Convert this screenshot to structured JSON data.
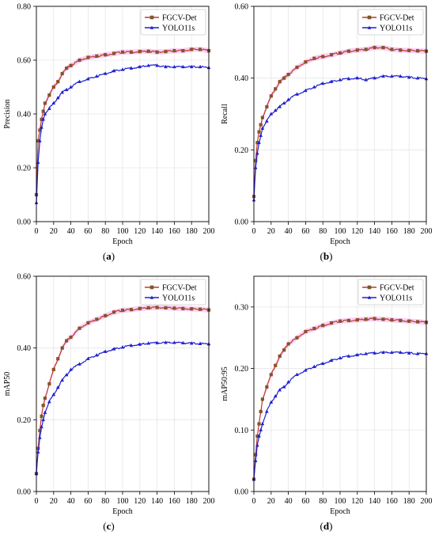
{
  "colors": {
    "fgcv": "#c0392b",
    "fgcv_marker": "#556b2f",
    "yolo": "#1f1fd0",
    "band": "#f3a9f0"
  },
  "chart_data": [
    {
      "id": "a",
      "type": "line",
      "label_letter": "a",
      "xlabel": "Epoch",
      "ylabel": "Precision",
      "xlim": [
        0,
        200
      ],
      "ylim": [
        0,
        0.8
      ],
      "xticks": [
        "0",
        "20",
        "40",
        "60",
        "80",
        "100",
        "120",
        "140",
        "160",
        "180",
        "200"
      ],
      "yticks": [
        "0.00",
        "0.20",
        "0.40",
        "0.60",
        "0.80"
      ],
      "grid": true,
      "legend": "top-right",
      "series": [
        {
          "name": "FGCV-Det",
          "color": "#c0392b",
          "marker": "square",
          "x": [
            0,
            2,
            4,
            6,
            8,
            10,
            15,
            20,
            25,
            30,
            35,
            40,
            50,
            60,
            70,
            80,
            90,
            100,
            110,
            120,
            130,
            140,
            150,
            160,
            170,
            180,
            190,
            200
          ],
          "y": [
            0.1,
            0.3,
            0.34,
            0.38,
            0.41,
            0.44,
            0.47,
            0.5,
            0.52,
            0.55,
            0.57,
            0.58,
            0.6,
            0.61,
            0.615,
            0.62,
            0.625,
            0.63,
            0.63,
            0.632,
            0.633,
            0.63,
            0.632,
            0.635,
            0.635,
            0.64,
            0.64,
            0.635
          ]
        },
        {
          "name": "YOLO11s",
          "color": "#1f1fd0",
          "marker": "triangle",
          "x": [
            0,
            2,
            4,
            6,
            8,
            10,
            15,
            20,
            25,
            30,
            35,
            40,
            50,
            60,
            70,
            80,
            90,
            100,
            110,
            120,
            130,
            140,
            150,
            160,
            170,
            180,
            190,
            200
          ],
          "y": [
            0.07,
            0.22,
            0.3,
            0.35,
            0.38,
            0.4,
            0.42,
            0.44,
            0.46,
            0.48,
            0.49,
            0.5,
            0.52,
            0.53,
            0.54,
            0.55,
            0.56,
            0.565,
            0.57,
            0.575,
            0.58,
            0.58,
            0.575,
            0.575,
            0.575,
            0.575,
            0.575,
            0.572
          ]
        }
      ]
    },
    {
      "id": "b",
      "type": "line",
      "label_letter": "b",
      "xlabel": "Epoch",
      "ylabel": "Recall",
      "xlim": [
        0,
        200
      ],
      "ylim": [
        0,
        0.6
      ],
      "xticks": [
        "0",
        "20",
        "40",
        "60",
        "80",
        "100",
        "120",
        "140",
        "160",
        "180",
        "200"
      ],
      "yticks": [
        "0.00",
        "0.20",
        "0.40",
        "0.60"
      ],
      "grid": true,
      "legend": "top-right",
      "series": [
        {
          "name": "FGCV-Det",
          "color": "#c0392b",
          "marker": "square",
          "x": [
            0,
            2,
            4,
            6,
            8,
            10,
            15,
            20,
            25,
            30,
            35,
            40,
            50,
            60,
            70,
            80,
            90,
            100,
            110,
            120,
            130,
            140,
            150,
            160,
            170,
            180,
            190,
            200
          ],
          "y": [
            0.07,
            0.17,
            0.22,
            0.25,
            0.27,
            0.29,
            0.32,
            0.35,
            0.37,
            0.39,
            0.4,
            0.41,
            0.43,
            0.445,
            0.455,
            0.46,
            0.465,
            0.47,
            0.475,
            0.478,
            0.48,
            0.485,
            0.485,
            0.48,
            0.478,
            0.477,
            0.476,
            0.475
          ]
        },
        {
          "name": "YOLO11s",
          "color": "#1f1fd0",
          "marker": "triangle",
          "x": [
            0,
            2,
            4,
            6,
            8,
            10,
            15,
            20,
            25,
            30,
            35,
            40,
            50,
            60,
            70,
            80,
            90,
            100,
            110,
            120,
            130,
            140,
            150,
            160,
            170,
            180,
            190,
            200
          ],
          "y": [
            0.06,
            0.15,
            0.19,
            0.22,
            0.24,
            0.26,
            0.28,
            0.3,
            0.31,
            0.32,
            0.33,
            0.34,
            0.355,
            0.365,
            0.375,
            0.385,
            0.39,
            0.395,
            0.398,
            0.4,
            0.395,
            0.4,
            0.405,
            0.405,
            0.405,
            0.402,
            0.4,
            0.398
          ]
        }
      ]
    },
    {
      "id": "c",
      "type": "line",
      "label_letter": "c",
      "xlabel": "Epoch",
      "ylabel": "mAP50",
      "xlim": [
        0,
        200
      ],
      "ylim": [
        0,
        0.6
      ],
      "xticks": [
        "0",
        "20",
        "40",
        "60",
        "80",
        "100",
        "120",
        "140",
        "160",
        "180",
        "200"
      ],
      "yticks": [
        "0.00",
        "0.20",
        "0.40",
        "0.60"
      ],
      "grid": true,
      "legend": "top-right",
      "series": [
        {
          "name": "FGCV-Det",
          "color": "#c0392b",
          "marker": "square",
          "x": [
            0,
            2,
            4,
            6,
            8,
            10,
            15,
            20,
            25,
            30,
            35,
            40,
            50,
            60,
            70,
            80,
            90,
            100,
            110,
            120,
            130,
            140,
            150,
            160,
            170,
            180,
            190,
            200
          ],
          "y": [
            0.05,
            0.12,
            0.17,
            0.21,
            0.24,
            0.26,
            0.3,
            0.34,
            0.37,
            0.4,
            0.42,
            0.43,
            0.455,
            0.47,
            0.48,
            0.49,
            0.5,
            0.505,
            0.507,
            0.51,
            0.512,
            0.513,
            0.512,
            0.511,
            0.51,
            0.509,
            0.508,
            0.506
          ]
        },
        {
          "name": "YOLO11s",
          "color": "#1f1fd0",
          "marker": "triangle",
          "x": [
            0,
            2,
            4,
            6,
            8,
            10,
            15,
            20,
            25,
            30,
            35,
            40,
            50,
            60,
            70,
            80,
            90,
            100,
            110,
            120,
            130,
            140,
            150,
            160,
            170,
            180,
            190,
            200
          ],
          "y": [
            0.05,
            0.11,
            0.15,
            0.18,
            0.2,
            0.22,
            0.25,
            0.27,
            0.29,
            0.31,
            0.325,
            0.34,
            0.355,
            0.37,
            0.38,
            0.39,
            0.397,
            0.402,
            0.407,
            0.41,
            0.413,
            0.414,
            0.415,
            0.415,
            0.414,
            0.413,
            0.412,
            0.411
          ]
        }
      ]
    },
    {
      "id": "d",
      "type": "line",
      "label_letter": "d",
      "xlabel": "Epoch",
      "ylabel": "mAP50:95",
      "xlim": [
        0,
        200
      ],
      "ylim": [
        0,
        0.35
      ],
      "xticks": [
        "0",
        "20",
        "40",
        "60",
        "80",
        "100",
        "120",
        "140",
        "160",
        "180",
        "200"
      ],
      "yticks": [
        "0.00",
        "0.10",
        "0.20",
        "0.30"
      ],
      "grid": true,
      "legend": "top-right",
      "series": [
        {
          "name": "FGCV-Det",
          "color": "#c0392b",
          "marker": "square",
          "x": [
            0,
            2,
            4,
            6,
            8,
            10,
            15,
            20,
            25,
            30,
            35,
            40,
            50,
            60,
            70,
            80,
            90,
            100,
            110,
            120,
            130,
            140,
            150,
            160,
            170,
            180,
            190,
            200
          ],
          "y": [
            0.02,
            0.06,
            0.09,
            0.11,
            0.13,
            0.15,
            0.17,
            0.19,
            0.205,
            0.22,
            0.23,
            0.24,
            0.25,
            0.26,
            0.265,
            0.27,
            0.274,
            0.277,
            0.278,
            0.279,
            0.28,
            0.281,
            0.28,
            0.279,
            0.278,
            0.277,
            0.276,
            0.275
          ]
        },
        {
          "name": "YOLO11s",
          "color": "#1f1fd0",
          "marker": "triangle",
          "x": [
            0,
            2,
            4,
            6,
            8,
            10,
            15,
            20,
            25,
            30,
            35,
            40,
            50,
            60,
            70,
            80,
            90,
            100,
            110,
            120,
            130,
            140,
            150,
            160,
            170,
            180,
            190,
            200
          ],
          "y": [
            0.02,
            0.05,
            0.075,
            0.09,
            0.1,
            0.11,
            0.13,
            0.145,
            0.155,
            0.165,
            0.17,
            0.178,
            0.19,
            0.197,
            0.203,
            0.208,
            0.213,
            0.217,
            0.22,
            0.222,
            0.224,
            0.225,
            0.226,
            0.226,
            0.226,
            0.225,
            0.224,
            0.224
          ]
        }
      ]
    }
  ]
}
